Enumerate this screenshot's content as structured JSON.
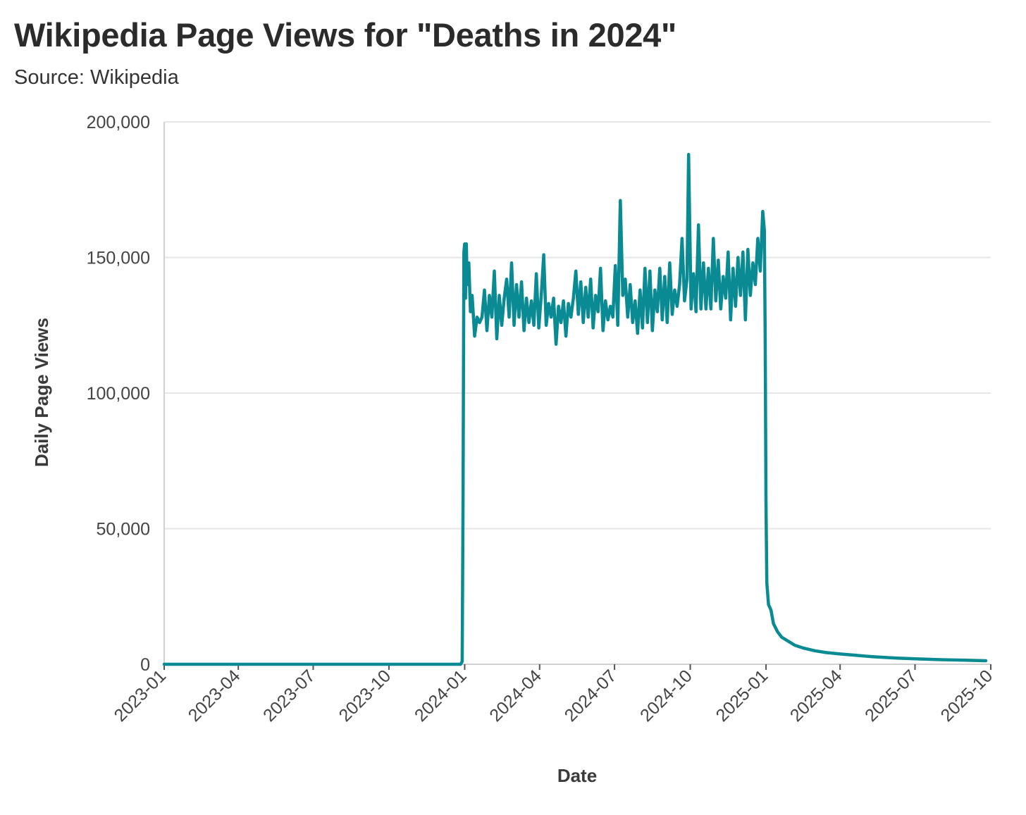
{
  "header": {
    "title": "Wikipedia Page Views for \"Deaths in 2024\"",
    "subtitle": "Source: Wikipedia"
  },
  "colors": {
    "line": "#0a8a93",
    "grid": "#e6e6e6",
    "axis": "#d0d0d0"
  },
  "chart_data": {
    "type": "line",
    "title": "Wikipedia Page Views for \"Deaths in 2024\"",
    "subtitle": "Source: Wikipedia",
    "xlabel": "Date",
    "ylabel": "Daily Page Views",
    "x_axis_type": "date",
    "xlim": [
      "2023-01-01",
      "2025-10-01"
    ],
    "ylim": [
      0,
      200000
    ],
    "x_ticks": [
      "2023-01",
      "2023-04",
      "2023-07",
      "2023-10",
      "2024-01",
      "2024-04",
      "2024-07",
      "2024-10",
      "2025-01",
      "2025-04",
      "2025-07",
      "2025-10"
    ],
    "y_ticks": [
      0,
      50000,
      100000,
      150000,
      200000
    ],
    "y_tick_labels": [
      "0",
      "50,000",
      "100,000",
      "150,000",
      "200,000"
    ],
    "grid": "horizontal",
    "legend": "none",
    "series": [
      {
        "points": [
          [
            "2023-01-01",
            0
          ],
          [
            "2023-06-01",
            0
          ],
          [
            "2023-12-01",
            0
          ],
          [
            "2023-12-27",
            0
          ],
          [
            "2023-12-29",
            1000
          ],
          [
            "2023-12-30",
            60000
          ],
          [
            "2023-12-31",
            152000
          ],
          [
            "2024-01-01",
            155000
          ],
          [
            "2024-01-02",
            135000
          ],
          [
            "2024-01-03",
            155000
          ],
          [
            "2024-01-04",
            140000
          ],
          [
            "2024-01-06",
            148000
          ],
          [
            "2024-01-08",
            130000
          ],
          [
            "2024-01-10",
            136000
          ],
          [
            "2024-01-13",
            121000
          ],
          [
            "2024-01-16",
            128000
          ],
          [
            "2024-01-19",
            126000
          ],
          [
            "2024-01-22",
            128000
          ],
          [
            "2024-01-25",
            138000
          ],
          [
            "2024-01-28",
            123000
          ],
          [
            "2024-01-31",
            136000
          ],
          [
            "2024-02-03",
            128000
          ],
          [
            "2024-02-06",
            145000
          ],
          [
            "2024-02-09",
            120000
          ],
          [
            "2024-02-12",
            136000
          ],
          [
            "2024-02-15",
            125000
          ],
          [
            "2024-02-18",
            135000
          ],
          [
            "2024-02-21",
            142000
          ],
          [
            "2024-02-24",
            128000
          ],
          [
            "2024-02-27",
            148000
          ],
          [
            "2024-03-01",
            125000
          ],
          [
            "2024-03-04",
            140000
          ],
          [
            "2024-03-07",
            128000
          ],
          [
            "2024-03-10",
            141000
          ],
          [
            "2024-03-13",
            123000
          ],
          [
            "2024-03-16",
            135000
          ],
          [
            "2024-03-19",
            126000
          ],
          [
            "2024-03-22",
            134000
          ],
          [
            "2024-03-25",
            125000
          ],
          [
            "2024-03-28",
            144000
          ],
          [
            "2024-03-31",
            124000
          ],
          [
            "2024-04-03",
            136000
          ],
          [
            "2024-04-06",
            151000
          ],
          [
            "2024-04-09",
            125000
          ],
          [
            "2024-04-12",
            133000
          ],
          [
            "2024-04-15",
            128000
          ],
          [
            "2024-04-18",
            135000
          ],
          [
            "2024-04-21",
            118000
          ],
          [
            "2024-04-24",
            132000
          ],
          [
            "2024-04-27",
            126000
          ],
          [
            "2024-04-30",
            134000
          ],
          [
            "2024-05-03",
            121000
          ],
          [
            "2024-05-06",
            133000
          ],
          [
            "2024-05-09",
            128000
          ],
          [
            "2024-05-12",
            135000
          ],
          [
            "2024-05-15",
            145000
          ],
          [
            "2024-05-18",
            129000
          ],
          [
            "2024-05-21",
            141000
          ],
          [
            "2024-05-24",
            126000
          ],
          [
            "2024-05-27",
            139000
          ],
          [
            "2024-05-30",
            128000
          ],
          [
            "2024-06-02",
            142000
          ],
          [
            "2024-06-05",
            124000
          ],
          [
            "2024-06-08",
            136000
          ],
          [
            "2024-06-11",
            130000
          ],
          [
            "2024-06-14",
            146000
          ],
          [
            "2024-06-17",
            123000
          ],
          [
            "2024-06-20",
            134000
          ],
          [
            "2024-06-23",
            127000
          ],
          [
            "2024-06-26",
            132000
          ],
          [
            "2024-06-29",
            128000
          ],
          [
            "2024-07-02",
            147000
          ],
          [
            "2024-07-05",
            125000
          ],
          [
            "2024-07-08",
            171000
          ],
          [
            "2024-07-11",
            136000
          ],
          [
            "2024-07-14",
            142000
          ],
          [
            "2024-07-17",
            128000
          ],
          [
            "2024-07-20",
            140000
          ],
          [
            "2024-07-23",
            126000
          ],
          [
            "2024-07-26",
            134000
          ],
          [
            "2024-07-29",
            122000
          ],
          [
            "2024-08-01",
            138000
          ],
          [
            "2024-08-04",
            124000
          ],
          [
            "2024-08-07",
            146000
          ],
          [
            "2024-08-10",
            126000
          ],
          [
            "2024-08-13",
            145000
          ],
          [
            "2024-08-16",
            123000
          ],
          [
            "2024-08-19",
            138000
          ],
          [
            "2024-08-22",
            130000
          ],
          [
            "2024-08-25",
            146000
          ],
          [
            "2024-08-28",
            127000
          ],
          [
            "2024-08-31",
            143000
          ],
          [
            "2024-09-03",
            126000
          ],
          [
            "2024-09-06",
            148000
          ],
          [
            "2024-09-09",
            129000
          ],
          [
            "2024-09-12",
            138000
          ],
          [
            "2024-09-15",
            132000
          ],
          [
            "2024-09-18",
            140000
          ],
          [
            "2024-09-21",
            157000
          ],
          [
            "2024-09-24",
            134000
          ],
          [
            "2024-09-27",
            142000
          ],
          [
            "2024-09-29",
            188000
          ],
          [
            "2024-10-02",
            131000
          ],
          [
            "2024-10-05",
            144000
          ],
          [
            "2024-10-08",
            130000
          ],
          [
            "2024-10-11",
            162000
          ],
          [
            "2024-10-14",
            131000
          ],
          [
            "2024-10-17",
            148000
          ],
          [
            "2024-10-20",
            131000
          ],
          [
            "2024-10-23",
            146000
          ],
          [
            "2024-10-26",
            131000
          ],
          [
            "2024-10-29",
            157000
          ],
          [
            "2024-11-01",
            134000
          ],
          [
            "2024-11-04",
            149000
          ],
          [
            "2024-11-07",
            131000
          ],
          [
            "2024-11-10",
            143000
          ],
          [
            "2024-11-13",
            135000
          ],
          [
            "2024-11-16",
            152000
          ],
          [
            "2024-11-19",
            127000
          ],
          [
            "2024-11-22",
            146000
          ],
          [
            "2024-11-25",
            132000
          ],
          [
            "2024-11-28",
            150000
          ],
          [
            "2024-12-01",
            136000
          ],
          [
            "2024-12-04",
            152000
          ],
          [
            "2024-12-07",
            127000
          ],
          [
            "2024-12-10",
            153000
          ],
          [
            "2024-12-13",
            136000
          ],
          [
            "2024-12-16",
            148000
          ],
          [
            "2024-12-19",
            140000
          ],
          [
            "2024-12-22",
            157000
          ],
          [
            "2024-12-25",
            145000
          ],
          [
            "2024-12-28",
            167000
          ],
          [
            "2024-12-30",
            160000
          ],
          [
            "2024-12-31",
            120000
          ],
          [
            "2025-01-01",
            60000
          ],
          [
            "2025-01-02",
            30000
          ],
          [
            "2025-01-04",
            22000
          ],
          [
            "2025-01-07",
            20000
          ],
          [
            "2025-01-10",
            15000
          ],
          [
            "2025-01-15",
            12000
          ],
          [
            "2025-01-20",
            10000
          ],
          [
            "2025-01-28",
            8500
          ],
          [
            "2025-02-05",
            7000
          ],
          [
            "2025-02-15",
            6000
          ],
          [
            "2025-03-01",
            5000
          ],
          [
            "2025-03-15",
            4300
          ],
          [
            "2025-04-01",
            3800
          ],
          [
            "2025-04-20",
            3300
          ],
          [
            "2025-05-10",
            2800
          ],
          [
            "2025-06-01",
            2400
          ],
          [
            "2025-07-01",
            2000
          ],
          [
            "2025-08-01",
            1700
          ],
          [
            "2025-09-01",
            1500
          ],
          [
            "2025-09-25",
            1300
          ]
        ]
      }
    ]
  }
}
